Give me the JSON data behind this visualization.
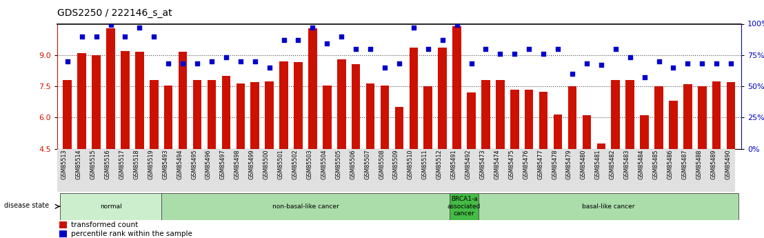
{
  "title": "GDS2250 / 222146_s_at",
  "samples": [
    "GSM85513",
    "GSM85514",
    "GSM85515",
    "GSM85516",
    "GSM85517",
    "GSM85518",
    "GSM85519",
    "GSM85493",
    "GSM85494",
    "GSM85495",
    "GSM85496",
    "GSM85497",
    "GSM85498",
    "GSM85499",
    "GSM85500",
    "GSM85501",
    "GSM85502",
    "GSM85503",
    "GSM85504",
    "GSM85505",
    "GSM85506",
    "GSM85507",
    "GSM85508",
    "GSM85509",
    "GSM85510",
    "GSM85511",
    "GSM85512",
    "GSM85491",
    "GSM85492",
    "GSM85473",
    "GSM85474",
    "GSM85475",
    "GSM85476",
    "GSM85477",
    "GSM85478",
    "GSM85479",
    "GSM85480",
    "GSM85481",
    "GSM85482",
    "GSM85483",
    "GSM85484",
    "GSM85485",
    "GSM85486",
    "GSM85487",
    "GSM85488",
    "GSM85489",
    "GSM85490"
  ],
  "bar_values": [
    7.8,
    9.1,
    9.0,
    10.3,
    9.2,
    9.15,
    7.8,
    7.55,
    9.15,
    7.8,
    7.8,
    8.0,
    7.65,
    7.7,
    7.75,
    8.7,
    8.65,
    10.3,
    7.55,
    8.8,
    8.55,
    7.65,
    7.55,
    6.5,
    9.35,
    7.5,
    9.35,
    10.4,
    7.2,
    7.8,
    7.8,
    7.35,
    7.35,
    7.25,
    6.15,
    7.5,
    6.1,
    4.75,
    7.8,
    7.8,
    6.1,
    7.5,
    6.8,
    7.6,
    7.5,
    7.75,
    7.7
  ],
  "scatter_pct": [
    70,
    90,
    90,
    99,
    90,
    97,
    90,
    68,
    68,
    68,
    70,
    73,
    70,
    70,
    65,
    87,
    87,
    97,
    84,
    90,
    80,
    80,
    65,
    68,
    97,
    80,
    87,
    99,
    68,
    80,
    76,
    76,
    80,
    76,
    80,
    60,
    68,
    67,
    80,
    73,
    57,
    70,
    65,
    68,
    68,
    68,
    68
  ],
  "bar_color": "#cc1100",
  "scatter_color": "#0000cc",
  "ylim_left": [
    4.5,
    10.5
  ],
  "yticks_left": [
    4.5,
    6.0,
    7.5,
    9.0
  ],
  "ylim_right": [
    0,
    100
  ],
  "yticks_right": [
    0,
    25,
    50,
    75,
    100
  ],
  "yticklabels_right": [
    "0%",
    "25%",
    "50%",
    "75%",
    "100%"
  ],
  "groups": [
    {
      "label": "normal",
      "start": 0,
      "end": 7,
      "color": "#cceecc"
    },
    {
      "label": "non-basal-like cancer",
      "start": 7,
      "end": 27,
      "color": "#aaddaa"
    },
    {
      "label": "BRCA1-a\nassociated\ncancer",
      "start": 27,
      "end": 29,
      "color": "#44bb44"
    },
    {
      "label": "basal-like cancer",
      "start": 29,
      "end": 47,
      "color": "#aaddaa"
    }
  ],
  "disease_state_label": "disease state",
  "legend_bar_label": "transformed count",
  "legend_scatter_label": "percentile rank within the sample",
  "background_color": "#ffffff",
  "grid_color": "#444444",
  "title_fontsize": 10,
  "axis_label_color_left": "#cc1100",
  "axis_label_color_right": "#0000cc"
}
